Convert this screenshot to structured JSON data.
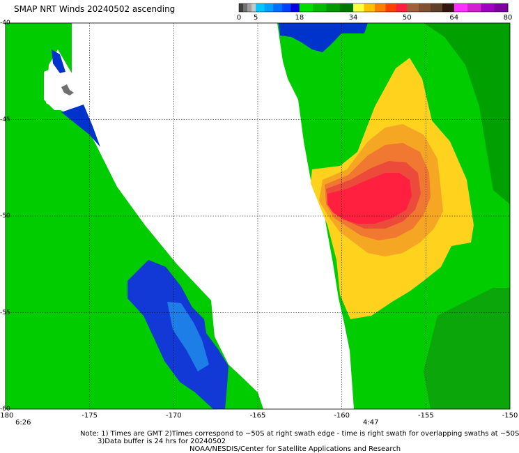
{
  "title": "SMAP NRT Winds 20240502 ascending",
  "colorbar": {
    "ticks": [
      {
        "label": "0",
        "value": 0
      },
      {
        "label": "5",
        "value": 5
      },
      {
        "label": "18",
        "value": 18
      },
      {
        "label": "34",
        "value": 34
      },
      {
        "label": "50",
        "value": 50
      },
      {
        "label": "64",
        "value": 64
      },
      {
        "label": "80",
        "value": 80
      }
    ],
    "segments": [
      {
        "from": 0,
        "to": 5,
        "colors": [
          "#404040",
          "#707070",
          "#a0a0a0",
          "#c8c8c8"
        ]
      },
      {
        "from": 5,
        "to": 18,
        "colors": [
          "#00c8ff",
          "#00a0ff",
          "#0070ff",
          "#0040ff",
          "#0000e0"
        ]
      },
      {
        "from": 18,
        "to": 34,
        "colors": [
          "#00dd00",
          "#00bb00",
          "#009900",
          "#007700"
        ]
      },
      {
        "from": 34,
        "to": 50,
        "colors": [
          "#ffff40",
          "#ffc000",
          "#ff8000",
          "#ff4000",
          "#ff2040"
        ]
      },
      {
        "from": 50,
        "to": 64,
        "colors": [
          "#a0603a",
          "#805030",
          "#604028",
          "#301810"
        ]
      },
      {
        "from": 64,
        "to": 80,
        "colors": [
          "#ff30ff",
          "#d020d0",
          "#a000c0",
          "#8000a0"
        ]
      }
    ]
  },
  "map": {
    "lon_ticks": [
      "-180",
      "-175",
      "-170",
      "-165",
      "-160",
      "-155",
      "-150"
    ],
    "lat_ticks": [
      "-40",
      "-45",
      "-50",
      "-55",
      "-60"
    ],
    "wind_colors": {
      "calm_blue": "#0033cc",
      "light_blue": "#1e7ee8",
      "green": "#00cc00",
      "dark_green": "#00a000",
      "yellow": "#ffd000",
      "orange": "#f08020",
      "red": "#ff2040"
    }
  },
  "times": {
    "left": "6:26",
    "right": "4:47"
  },
  "notes": {
    "line1": "Note: 1) Times are GMT 2)Times correspond to ~50S at right swath edge - time is right swath for overlapping swaths at ~50S",
    "line2": "3)Data buffer is 24 hrs for 20240502",
    "line3": "NOAA/NESDIS/Center for Satellite Applications and Research"
  }
}
